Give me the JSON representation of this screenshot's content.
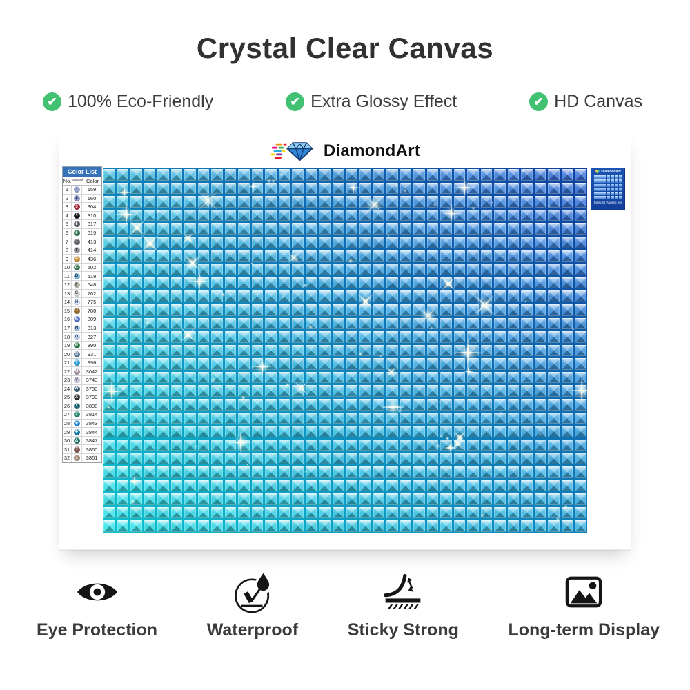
{
  "title": "Crystal Clear Canvas",
  "accent_green": "#43c173",
  "features": [
    {
      "label": "100% Eco-Friendly"
    },
    {
      "label": "Extra Glossy Effect"
    },
    {
      "label": "HD Canvas"
    }
  ],
  "poster": {
    "brand": "DiamondArt",
    "mini_card": {
      "brand": "DiamondArt",
      "caption": "Diamond Painting Set",
      "grid_cols": 7,
      "grid_rows": 6
    },
    "color_list": {
      "title": "Color List",
      "columns": [
        "No.",
        "Symbol",
        "Color"
      ],
      "rows": [
        {
          "no": "1",
          "sym": "1",
          "code": "159",
          "bg": "#9fa9cf",
          "fg": "#1c2d66"
        },
        {
          "no": "2",
          "sym": "2",
          "code": "160",
          "bg": "#8e98c0",
          "fg": "#15225a"
        },
        {
          "no": "3",
          "sym": "3",
          "code": "304",
          "bg": "#a6283a",
          "fg": "#ffffff"
        },
        {
          "no": "4",
          "sym": "4",
          "code": "310",
          "bg": "#151515",
          "fg": "#ffffff"
        },
        {
          "no": "5",
          "sym": "5",
          "code": "317",
          "bg": "#55555d",
          "fg": "#ffffff"
        },
        {
          "no": "6",
          "sym": "6",
          "code": "319",
          "bg": "#2c6b4a",
          "fg": "#ffffff"
        },
        {
          "no": "7",
          "sym": "7",
          "code": "413",
          "bg": "#62626a",
          "fg": "#ffffff"
        },
        {
          "no": "8",
          "sym": "8",
          "code": "414",
          "bg": "#9c9ca4",
          "fg": "#222222"
        },
        {
          "no": "9",
          "sym": "A",
          "code": "436",
          "bg": "#c6953f",
          "fg": "#ffffff"
        },
        {
          "no": "10",
          "sym": "C",
          "code": "502",
          "bg": "#457d5e",
          "fg": "#ffffff"
        },
        {
          "no": "11",
          "sym": "D",
          "code": "519",
          "bg": "#84b8d8",
          "fg": "#12355e"
        },
        {
          "no": "12",
          "sym": "F",
          "code": "648",
          "bg": "#bcbcae",
          "fg": "#333333"
        },
        {
          "no": "13",
          "sym": "G",
          "code": "762",
          "bg": "#dcdcd8",
          "fg": "#444444"
        },
        {
          "no": "14",
          "sym": "H",
          "code": "775",
          "bg": "#dde6f4",
          "fg": "#445577"
        },
        {
          "no": "15",
          "sym": "J",
          "code": "780",
          "bg": "#96692c",
          "fg": "#ffffff"
        },
        {
          "no": "16",
          "sym": "K",
          "code": "809",
          "bg": "#5576ca",
          "fg": "#ffffff"
        },
        {
          "no": "17",
          "sym": "N",
          "code": "813",
          "bg": "#a6c6e4",
          "fg": "#1c3a66"
        },
        {
          "no": "18",
          "sym": "Q",
          "code": "827",
          "bg": "#c8daee",
          "fg": "#2a4a77"
        },
        {
          "no": "19",
          "sym": "R",
          "code": "890",
          "bg": "#2e7a4b",
          "fg": "#ffffff"
        },
        {
          "no": "20",
          "sym": "S",
          "code": "931",
          "bg": "#5c7d97",
          "fg": "#ffffff"
        },
        {
          "no": "21",
          "sym": "T",
          "code": "996",
          "bg": "#2fa2da",
          "fg": "#ffffff"
        },
        {
          "no": "22",
          "sym": "U",
          "code": "3042",
          "bg": "#ab9cab",
          "fg": "#ffffff"
        },
        {
          "no": "23",
          "sym": "V",
          "code": "3743",
          "bg": "#cfccdd",
          "fg": "#4a4a66"
        },
        {
          "no": "24",
          "sym": "W",
          "code": "3750",
          "bg": "#3a5a72",
          "fg": "#ffffff"
        },
        {
          "no": "25",
          "sym": "X",
          "code": "3799",
          "bg": "#333338",
          "fg": "#ffffff"
        },
        {
          "no": "26",
          "sym": "Y",
          "code": "3808",
          "bg": "#1e6875",
          "fg": "#ffffff"
        },
        {
          "no": "27",
          "sym": "Z",
          "code": "3814",
          "bg": "#2e8a72",
          "fg": "#ffffff"
        },
        {
          "no": "28",
          "sym": "✳",
          "code": "3843",
          "bg": "#2b8ed8",
          "fg": "#ffffff"
        },
        {
          "no": "29",
          "sym": "❖",
          "code": "3844",
          "bg": "#1a7fae",
          "fg": "#ffffff"
        },
        {
          "no": "30",
          "sym": "&",
          "code": "3847",
          "bg": "#1a7569",
          "fg": "#ffffff"
        },
        {
          "no": "31",
          "sym": "?",
          "code": "3860",
          "bg": "#7d584e",
          "fg": "#ffffff"
        },
        {
          "no": "32",
          "sym": "/",
          "code": "3861",
          "bg": "#ab8e80",
          "fg": "#ffffff"
        }
      ]
    },
    "canvas": {
      "cols": 36,
      "rows": 27,
      "tile_corner_colors": {
        "tl": "#4cc0de",
        "tr": "#3f74da",
        "bl": "#36dde4",
        "br": "#3fb2de"
      },
      "sparkle_color": "#fffbe6",
      "sparkle_count": 95,
      "seed": 20240707
    }
  },
  "benefits": [
    {
      "icon": "eye-icon",
      "label": "Eye Protection"
    },
    {
      "icon": "waterproof-icon",
      "label": "Waterproof"
    },
    {
      "icon": "sticky-icon",
      "label": "Sticky Strong"
    },
    {
      "icon": "display-icon",
      "label": "Long-term Display"
    }
  ]
}
